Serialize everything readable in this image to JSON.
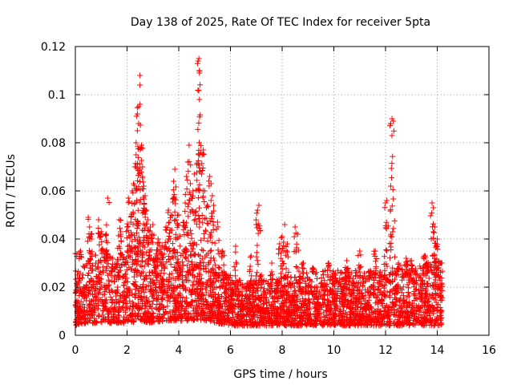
{
  "chart_data": {
    "type": "scatter",
    "title": "Day 138 of 2025, Rate Of TEC Index for receiver 5pta",
    "xlabel": "GPS time / hours",
    "ylabel": "ROTI / TECUs",
    "xlim": [
      0,
      16
    ],
    "ylim": [
      0,
      0.12
    ],
    "xticks": [
      0,
      2,
      4,
      6,
      8,
      10,
      12,
      14,
      16
    ],
    "yticks": [
      0,
      0.02,
      0.04,
      0.06,
      0.08,
      0.1,
      0.12
    ],
    "xtick_labels": [
      "0",
      "2",
      "4",
      "6",
      "8",
      "10",
      "12",
      "14",
      "16"
    ],
    "ytick_labels": [
      "0",
      "0.02",
      "0.04",
      "0.06",
      "0.08",
      "0.1",
      "0.12"
    ],
    "grid": true,
    "marker": "+",
    "color": "#ff0000",
    "data_range_hours": [
      0,
      14.2
    ],
    "baseline_band": [
      [
        0.0,
        0.004,
        0.025
      ],
      [
        0.5,
        0.005,
        0.03
      ],
      [
        1.0,
        0.005,
        0.034
      ],
      [
        1.5,
        0.005,
        0.032
      ],
      [
        2.0,
        0.005,
        0.034
      ],
      [
        2.5,
        0.006,
        0.036
      ],
      [
        3.0,
        0.005,
        0.035
      ],
      [
        3.5,
        0.006,
        0.036
      ],
      [
        4.0,
        0.006,
        0.034
      ],
      [
        4.5,
        0.006,
        0.033
      ],
      [
        5.0,
        0.006,
        0.032
      ],
      [
        5.5,
        0.005,
        0.028
      ],
      [
        6.0,
        0.004,
        0.024
      ],
      [
        6.5,
        0.004,
        0.022
      ],
      [
        7.0,
        0.004,
        0.022
      ],
      [
        7.5,
        0.004,
        0.022
      ],
      [
        8.0,
        0.004,
        0.024
      ],
      [
        8.5,
        0.004,
        0.024
      ],
      [
        9.0,
        0.004,
        0.025
      ],
      [
        9.5,
        0.004,
        0.026
      ],
      [
        10.0,
        0.004,
        0.026
      ],
      [
        10.5,
        0.004,
        0.026
      ],
      [
        11.0,
        0.004,
        0.026
      ],
      [
        11.5,
        0.004,
        0.027
      ],
      [
        12.0,
        0.004,
        0.027
      ],
      [
        12.5,
        0.004,
        0.027
      ],
      [
        13.0,
        0.004,
        0.027
      ],
      [
        13.5,
        0.004,
        0.028
      ],
      [
        14.0,
        0.004,
        0.03
      ],
      [
        14.2,
        0.004,
        0.03
      ]
    ],
    "peaks": [
      {
        "x": 0.0,
        "y": 0.034
      },
      {
        "x": 0.2,
        "y": 0.035
      },
      {
        "x": 0.5,
        "y": 0.049
      },
      {
        "x": 0.55,
        "y": 0.045
      },
      {
        "x": 0.6,
        "y": 0.042
      },
      {
        "x": 0.9,
        "y": 0.048
      },
      {
        "x": 1.0,
        "y": 0.043
      },
      {
        "x": 1.2,
        "y": 0.042
      },
      {
        "x": 1.25,
        "y": 0.057
      },
      {
        "x": 1.7,
        "y": 0.048
      },
      {
        "x": 1.75,
        "y": 0.043
      },
      {
        "x": 2.0,
        "y": 0.045
      },
      {
        "x": 2.05,
        "y": 0.057
      },
      {
        "x": 2.15,
        "y": 0.047
      },
      {
        "x": 2.2,
        "y": 0.06
      },
      {
        "x": 2.25,
        "y": 0.063
      },
      {
        "x": 2.3,
        "y": 0.07
      },
      {
        "x": 2.35,
        "y": 0.075
      },
      {
        "x": 2.35,
        "y": 0.08
      },
      {
        "x": 2.4,
        "y": 0.085
      },
      {
        "x": 2.4,
        "y": 0.092
      },
      {
        "x": 2.45,
        "y": 0.088
      },
      {
        "x": 2.45,
        "y": 0.095
      },
      {
        "x": 2.5,
        "y": 0.104
      },
      {
        "x": 2.5,
        "y": 0.108
      },
      {
        "x": 2.55,
        "y": 0.078
      },
      {
        "x": 2.6,
        "y": 0.07
      },
      {
        "x": 2.6,
        "y": 0.066
      },
      {
        "x": 2.65,
        "y": 0.062
      },
      {
        "x": 2.7,
        "y": 0.058
      },
      {
        "x": 2.75,
        "y": 0.052
      },
      {
        "x": 2.8,
        "y": 0.048
      },
      {
        "x": 2.9,
        "y": 0.045
      },
      {
        "x": 3.0,
        "y": 0.046
      },
      {
        "x": 3.2,
        "y": 0.04
      },
      {
        "x": 3.5,
        "y": 0.045
      },
      {
        "x": 3.6,
        "y": 0.052
      },
      {
        "x": 3.7,
        "y": 0.05
      },
      {
        "x": 3.8,
        "y": 0.057
      },
      {
        "x": 3.8,
        "y": 0.064
      },
      {
        "x": 3.85,
        "y": 0.069
      },
      {
        "x": 3.9,
        "y": 0.048
      },
      {
        "x": 4.0,
        "y": 0.05
      },
      {
        "x": 4.2,
        "y": 0.047
      },
      {
        "x": 4.25,
        "y": 0.055
      },
      {
        "x": 4.3,
        "y": 0.066
      },
      {
        "x": 4.35,
        "y": 0.072
      },
      {
        "x": 4.4,
        "y": 0.079
      },
      {
        "x": 4.45,
        "y": 0.063
      },
      {
        "x": 4.5,
        "y": 0.057
      },
      {
        "x": 4.55,
        "y": 0.06
      },
      {
        "x": 4.6,
        "y": 0.067
      },
      {
        "x": 4.7,
        "y": 0.071
      },
      {
        "x": 4.75,
        "y": 0.114
      },
      {
        "x": 4.78,
        "y": 0.115
      },
      {
        "x": 4.8,
        "y": 0.11
      },
      {
        "x": 4.8,
        "y": 0.109
      },
      {
        "x": 4.8,
        "y": 0.098
      },
      {
        "x": 4.85,
        "y": 0.076
      },
      {
        "x": 4.9,
        "y": 0.075
      },
      {
        "x": 4.95,
        "y": 0.077
      },
      {
        "x": 5.0,
        "y": 0.06
      },
      {
        "x": 5.1,
        "y": 0.054
      },
      {
        "x": 5.2,
        "y": 0.066
      },
      {
        "x": 5.25,
        "y": 0.063
      },
      {
        "x": 5.3,
        "y": 0.058
      },
      {
        "x": 5.35,
        "y": 0.054
      },
      {
        "x": 5.5,
        "y": 0.047
      },
      {
        "x": 5.7,
        "y": 0.035
      },
      {
        "x": 6.2,
        "y": 0.037
      },
      {
        "x": 6.8,
        "y": 0.033
      },
      {
        "x": 7.0,
        "y": 0.046
      },
      {
        "x": 7.05,
        "y": 0.052
      },
      {
        "x": 7.1,
        "y": 0.054
      },
      {
        "x": 7.2,
        "y": 0.025
      },
      {
        "x": 7.6,
        "y": 0.03
      },
      {
        "x": 7.9,
        "y": 0.038
      },
      {
        "x": 8.0,
        "y": 0.041
      },
      {
        "x": 8.1,
        "y": 0.046
      },
      {
        "x": 8.2,
        "y": 0.038
      },
      {
        "x": 8.5,
        "y": 0.045
      },
      {
        "x": 8.6,
        "y": 0.042
      },
      {
        "x": 8.8,
        "y": 0.03
      },
      {
        "x": 9.2,
        "y": 0.028
      },
      {
        "x": 9.8,
        "y": 0.03
      },
      {
        "x": 10.5,
        "y": 0.031
      },
      {
        "x": 11.0,
        "y": 0.035
      },
      {
        "x": 11.6,
        "y": 0.035
      },
      {
        "x": 12.0,
        "y": 0.055
      },
      {
        "x": 12.05,
        "y": 0.056
      },
      {
        "x": 12.2,
        "y": 0.062
      },
      {
        "x": 12.2,
        "y": 0.088
      },
      {
        "x": 12.25,
        "y": 0.09
      },
      {
        "x": 12.3,
        "y": 0.089
      },
      {
        "x": 12.5,
        "y": 0.03
      },
      {
        "x": 12.8,
        "y": 0.032
      },
      {
        "x": 13.0,
        "y": 0.031
      },
      {
        "x": 13.5,
        "y": 0.033
      },
      {
        "x": 13.6,
        "y": 0.03
      },
      {
        "x": 13.8,
        "y": 0.055
      },
      {
        "x": 13.85,
        "y": 0.053
      },
      {
        "x": 13.9,
        "y": 0.045
      },
      {
        "x": 14.0,
        "y": 0.04
      },
      {
        "x": 14.1,
        "y": 0.03
      }
    ]
  }
}
